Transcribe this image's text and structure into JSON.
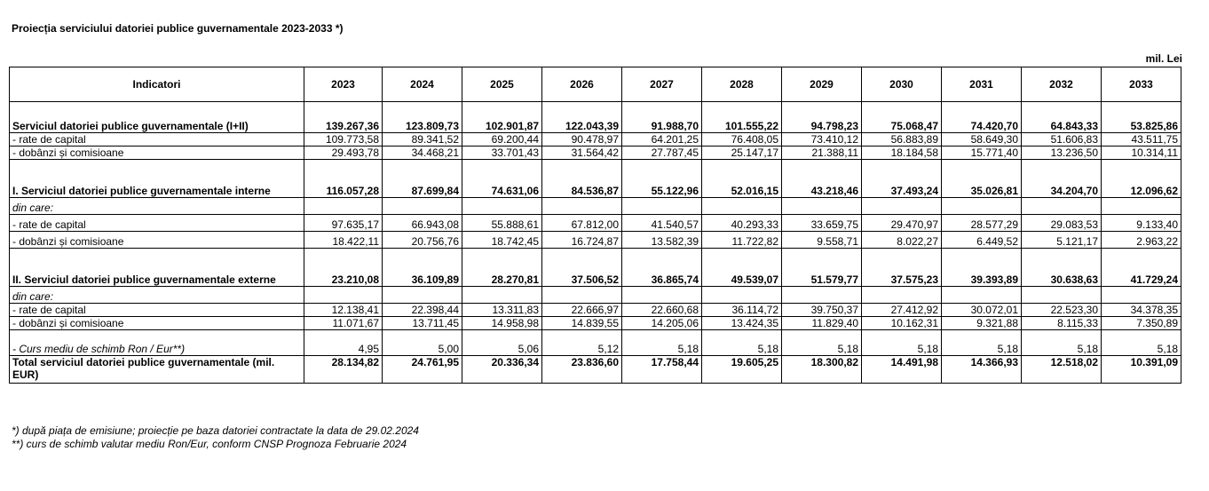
{
  "title": "Proiecția serviciului datoriei publice guvernamentale 2023-2033 *)",
  "unit": "mil. Lei",
  "columns": [
    "Indicatori",
    "2023",
    "2024",
    "2025",
    "2026",
    "2027",
    "2028",
    "2029",
    "2030",
    "2031",
    "2032",
    "2033"
  ],
  "rows": [
    {
      "label": "Serviciul datoriei publice guvernamentale (I+II)",
      "bold": true,
      "values": [
        "139.267,36",
        "123.809,73",
        "102.901,87",
        "122.043,39",
        "91.988,70",
        "101.555,22",
        "94.798,23",
        "75.068,47",
        "74.420,70",
        "64.843,33",
        "53.825,86"
      ]
    },
    {
      "label": " - rate de capital",
      "values": [
        "109.773,58",
        "89.341,52",
        "69.200,44",
        "90.478,97",
        "64.201,25",
        "76.408,05",
        "73.410,12",
        "56.883,89",
        "58.649,30",
        "51.606,83",
        "43.511,75"
      ]
    },
    {
      "label": " - dobânzi și comisioane",
      "values": [
        "29.493,78",
        "34.468,21",
        "33.701,43",
        "31.564,42",
        "27.787,45",
        "25.147,17",
        "21.388,11",
        "18.184,58",
        "15.771,40",
        "13.236,50",
        "10.314,11"
      ]
    },
    {
      "label": "I. Serviciul datoriei publice guvernamentale interne",
      "bold": true,
      "values": [
        "116.057,28",
        "87.699,84",
        "74.631,06",
        "84.536,87",
        "55.122,96",
        "52.016,15",
        "43.218,46",
        "37.493,24",
        "35.026,81",
        "34.204,70",
        "12.096,62"
      ]
    },
    {
      "label": "din care:",
      "italic": true,
      "values": [
        "",
        "",
        "",
        "",
        "",
        "",
        "",
        "",
        "",
        "",
        ""
      ]
    },
    {
      "label": " - rate de capital",
      "values": [
        "97.635,17",
        "66.943,08",
        "55.888,61",
        "67.812,00",
        "41.540,57",
        "40.293,33",
        "33.659,75",
        "29.470,97",
        "28.577,29",
        "29.083,53",
        "9.133,40"
      ]
    },
    {
      "label": " - dobânzi și comisioane",
      "values": [
        "18.422,11",
        "20.756,76",
        "18.742,45",
        "16.724,87",
        "13.582,39",
        "11.722,82",
        "9.558,71",
        "8.022,27",
        "6.449,52",
        "5.121,17",
        "2.963,22"
      ]
    },
    {
      "label": "II. Serviciul datoriei publice guvernamentale externe",
      "bold": true,
      "values": [
        "23.210,08",
        "36.109,89",
        "28.270,81",
        "37.506,52",
        "36.865,74",
        "49.539,07",
        "51.579,77",
        "37.575,23",
        "39.393,89",
        "30.638,63",
        "41.729,24"
      ]
    },
    {
      "label": "din care:",
      "italic": true,
      "values": [
        "",
        "",
        "",
        "",
        "",
        "",
        "",
        "",
        "",
        "",
        ""
      ]
    },
    {
      "label": " - rate de capital",
      "values": [
        "12.138,41",
        "22.398,44",
        "13.311,83",
        "22.666,97",
        "22.660,68",
        "36.114,72",
        "39.750,37",
        "27.412,92",
        "30.072,01",
        "22.523,30",
        "34.378,35"
      ]
    },
    {
      "label": " - dobânzi și comisioane",
      "values": [
        "11.071,67",
        "13.711,45",
        "14.958,98",
        "14.839,55",
        "14.205,06",
        "13.424,35",
        "11.829,40",
        "10.162,31",
        "9.321,88",
        "8.115,33",
        "7.350,89"
      ]
    },
    {
      "label": "- Curs mediu de schimb Ron / Eur**)",
      "italic": true,
      "values": [
        "4,95",
        "5,00",
        "5,06",
        "5,12",
        "5,18",
        "5,18",
        "5,18",
        "5,18",
        "5,18",
        "5,18",
        "5,18"
      ]
    },
    {
      "label": "Total serviciul datoriei publice guvernamentale (mil. EUR)",
      "bold": true,
      "values": [
        "28.134,82",
        "24.761,95",
        "20.336,34",
        "23.836,60",
        "17.758,44",
        "19.605,25",
        "18.300,82",
        "14.491,98",
        "14.366,93",
        "12.518,02",
        "10.391,09"
      ]
    }
  ],
  "footnotes": [
    "*) după piața de emisiune;  proiecție pe baza datoriei contractate la data de 29.02.2024",
    "**)  curs de schimb valutar mediu Ron/Eur, conform CNSP Prognoza Februarie 2024"
  ]
}
